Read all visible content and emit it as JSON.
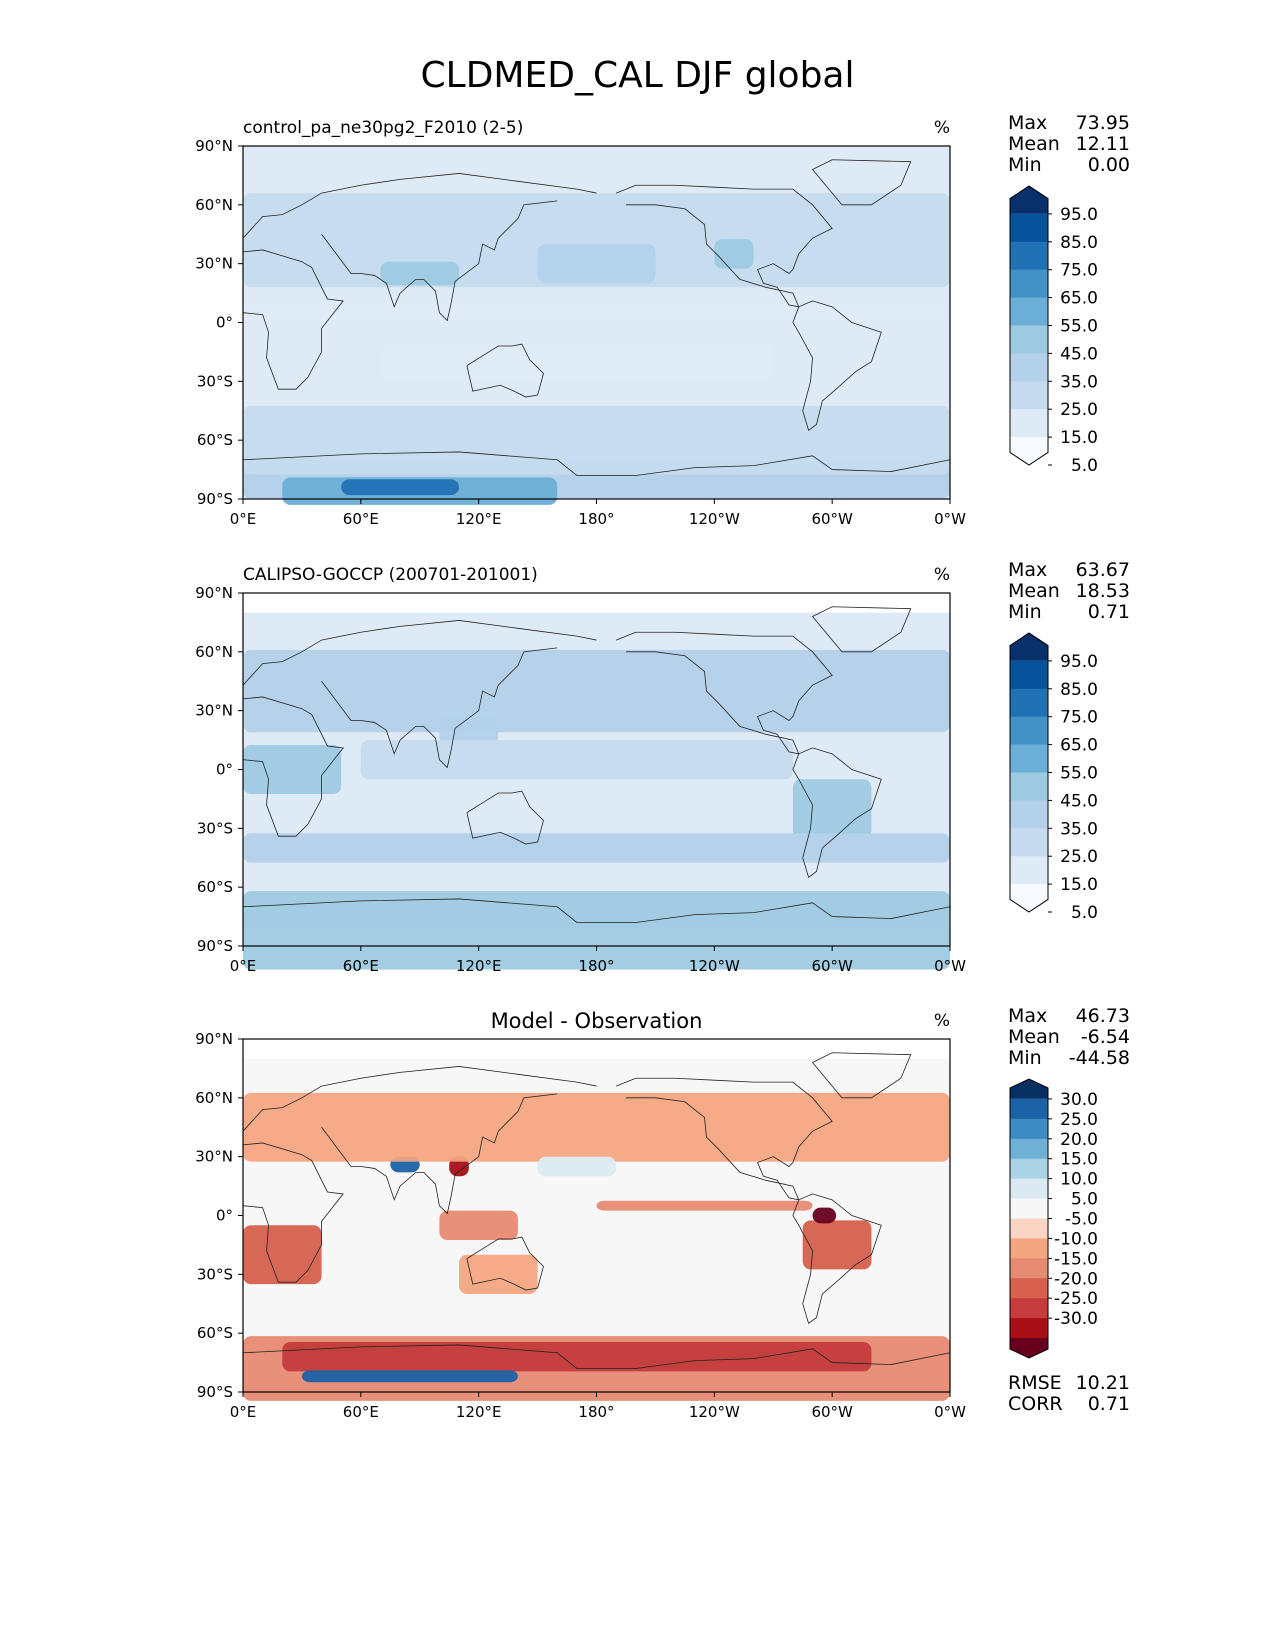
{
  "title": "CLDMED_CAL DJF global",
  "colors": {
    "blues": [
      "#f7fbff",
      "#deebf7",
      "#c6dbef",
      "#b3d1ea",
      "#9ecae1",
      "#6baed6",
      "#4292c6",
      "#2171b5",
      "#08519c",
      "#08306b"
    ],
    "diverging": [
      "#67001f",
      "#a50f15",
      "#c43c3c",
      "#d6604d",
      "#e78a72",
      "#f4a582",
      "#fbd5c4",
      "#f7f7f7",
      "#dbeaf2",
      "#abd3e6",
      "#6fb0d5",
      "#3c8bc3",
      "#1b62a6",
      "#053061"
    ]
  },
  "chart_data": [
    {
      "type": "heatmap",
      "panel_id": "model",
      "title": "control_pa_ne30pg2_F2010 (2-5)",
      "units": "%",
      "xlim": [
        0,
        360
      ],
      "ylim": [
        -90,
        90
      ],
      "x_ticks": [
        "0°E",
        "60°E",
        "120°E",
        "180°",
        "120°W",
        "60°W",
        "0°W"
      ],
      "y_ticks": [
        "90°N",
        "60°N",
        "30°N",
        "0°",
        "30°S",
        "60°S",
        "90°S"
      ],
      "stats": {
        "max_label": "Max",
        "max": "73.95",
        "mean_label": "Mean",
        "mean": "12.11",
        "min_label": "Min",
        "min": "0.00"
      },
      "colorbar": {
        "levels": [
          "95.0",
          "85.0",
          "75.0",
          "65.0",
          "55.0",
          "45.0",
          "35.0",
          "25.0",
          "15.0",
          "5.0"
        ]
      },
      "regions": [
        {
          "lon": 0,
          "lat": -80,
          "w": 360,
          "h": 20,
          "v": 0.3
        },
        {
          "lon": 20,
          "lat": -86,
          "w": 140,
          "h": 14,
          "v": 0.55
        },
        {
          "lon": 50,
          "lat": -84,
          "w": 60,
          "h": 8,
          "v": 0.8
        },
        {
          "lon": 0,
          "lat": -60,
          "w": 360,
          "h": 35,
          "v": 0.2
        },
        {
          "lon": 0,
          "lat": 42,
          "w": 360,
          "h": 48,
          "v": 0.2
        },
        {
          "lon": 70,
          "lat": 25,
          "w": 40,
          "h": 12,
          "v": 0.45
        },
        {
          "lon": 150,
          "lat": 30,
          "w": 60,
          "h": 20,
          "v": 0.35
        },
        {
          "lon": 240,
          "lat": 35,
          "w": 20,
          "h": 15,
          "v": 0.4
        },
        {
          "lon": 70,
          "lat": -20,
          "w": 200,
          "h": 20,
          "v": 0.15
        },
        {
          "lon": 0,
          "lat": 5,
          "w": 360,
          "h": 10,
          "v": 0.12
        }
      ]
    },
    {
      "type": "heatmap",
      "panel_id": "obs",
      "title": "CALIPSO-GOCCP (200701-201001)",
      "units": "%",
      "xlim": [
        0,
        360
      ],
      "ylim": [
        -90,
        90
      ],
      "x_ticks": [
        "0°E",
        "60°E",
        "120°E",
        "180°",
        "120°W",
        "60°W",
        "0°W"
      ],
      "y_ticks": [
        "90°N",
        "60°N",
        "30°N",
        "0°",
        "30°S",
        "60°S",
        "90°S"
      ],
      "stats": {
        "max_label": "Max",
        "max": "63.67",
        "mean_label": "Mean",
        "mean": "18.53",
        "min_label": "Min",
        "min": "0.71"
      },
      "colorbar": {
        "levels": [
          "95.0",
          "85.0",
          "75.0",
          "65.0",
          "55.0",
          "45.0",
          "35.0",
          "25.0",
          "15.0",
          "5.0"
        ]
      },
      "regions": [
        {
          "lon": 0,
          "lat": -82,
          "w": 360,
          "h": 40,
          "v": 0.45
        },
        {
          "lon": 0,
          "lat": 40,
          "w": 360,
          "h": 42,
          "v": 0.35
        },
        {
          "lon": 0,
          "lat": 0,
          "w": 50,
          "h": 25,
          "v": 0.4
        },
        {
          "lon": 280,
          "lat": -20,
          "w": 40,
          "h": 30,
          "v": 0.45
        },
        {
          "lon": 100,
          "lat": 20,
          "w": 30,
          "h": 15,
          "v": 0.35
        },
        {
          "lon": 0,
          "lat": -40,
          "w": 360,
          "h": 15,
          "v": 0.3
        },
        {
          "lon": 60,
          "lat": 5,
          "w": 220,
          "h": 20,
          "v": 0.25
        }
      ]
    },
    {
      "type": "heatmap",
      "panel_id": "diff",
      "title": "Model - Observation",
      "units": "%",
      "xlim": [
        0,
        360
      ],
      "ylim": [
        -90,
        90
      ],
      "x_ticks": [
        "0°E",
        "60°E",
        "120°E",
        "180°",
        "120°W",
        "60°W",
        "0°W"
      ],
      "y_ticks": [
        "90°N",
        "60°N",
        "30°N",
        "0°",
        "30°S",
        "60°S",
        "90°S"
      ],
      "stats": {
        "max_label": "Max",
        "max": "46.73",
        "mean_label": "Mean",
        "mean": "-6.54",
        "min_label": "Min",
        "min": "-44.58",
        "rmse_label": "RMSE",
        "rmse": "10.21",
        "corr_label": "CORR",
        "corr": "0.71"
      },
      "colorbar": {
        "levels": [
          "30.0",
          "25.0",
          "20.0",
          "15.0",
          "10.0",
          "5.0",
          "-5.0",
          "-10.0",
          "-15.0",
          "-20.0",
          "-25.0",
          "-30.0"
        ]
      },
      "regions": [
        {
          "lon": 0,
          "lat": -78,
          "w": 360,
          "h": 33,
          "v": -0.45
        },
        {
          "lon": 20,
          "lat": -72,
          "w": 300,
          "h": 15,
          "v": -0.7
        },
        {
          "lon": 30,
          "lat": -82,
          "w": 110,
          "h": 6,
          "v": 0.8
        },
        {
          "lon": 75,
          "lat": 26,
          "w": 15,
          "h": 8,
          "v": 0.9
        },
        {
          "lon": 105,
          "lat": 25,
          "w": 10,
          "h": 10,
          "v": -0.8
        },
        {
          "lon": 285,
          "lat": -15,
          "w": 35,
          "h": 25,
          "v": -0.55
        },
        {
          "lon": 290,
          "lat": 0,
          "w": 12,
          "h": 8,
          "v": -0.95
        },
        {
          "lon": 0,
          "lat": -20,
          "w": 40,
          "h": 30,
          "v": -0.55
        },
        {
          "lon": 0,
          "lat": 45,
          "w": 360,
          "h": 35,
          "v": -0.25
        },
        {
          "lon": 180,
          "lat": 5,
          "w": 110,
          "h": 5,
          "v": -0.4
        },
        {
          "lon": 150,
          "lat": 25,
          "w": 40,
          "h": 10,
          "v": 0.3
        },
        {
          "lon": 100,
          "lat": -5,
          "w": 40,
          "h": 15,
          "v": -0.35
        },
        {
          "lon": 110,
          "lat": -30,
          "w": 40,
          "h": 20,
          "v": -0.3
        }
      ]
    }
  ]
}
